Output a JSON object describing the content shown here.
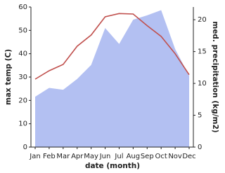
{
  "chart_data": {
    "type": "line",
    "x_label": "date (month)",
    "y_label": "max temp (C)",
    "y2_label": "med. precipitation (kg/m2)",
    "categories": [
      "Jan",
      "Feb",
      "Mar",
      "Apr",
      "May",
      "Jun",
      "Jul",
      "Aug",
      "Sep",
      "Oct",
      "Nov",
      "Dec"
    ],
    "series": [
      {
        "name": "max temp",
        "type": "line",
        "color": "#c0504d",
        "axis": "y",
        "values": [
          29.1,
          32.7,
          35.4,
          43.2,
          48.0,
          55.8,
          57.2,
          57.0,
          52.0,
          47.4,
          40.0,
          31.0
        ]
      },
      {
        "name": "med. precipitation",
        "type": "area",
        "color": "#b3c0f2",
        "axis": "y2",
        "values": [
          7.9,
          9.3,
          9.0,
          10.7,
          12.9,
          18.7,
          16.2,
          20.0,
          20.7,
          21.5,
          15.4,
          11.2
        ]
      }
    ],
    "ylim": [
      0,
      60
    ],
    "yticks": [
      0,
      10,
      20,
      30,
      40,
      50,
      60
    ],
    "y2lim": [
      0,
      22
    ],
    "y2ticks": [
      0,
      5,
      10,
      15,
      20
    ]
  }
}
